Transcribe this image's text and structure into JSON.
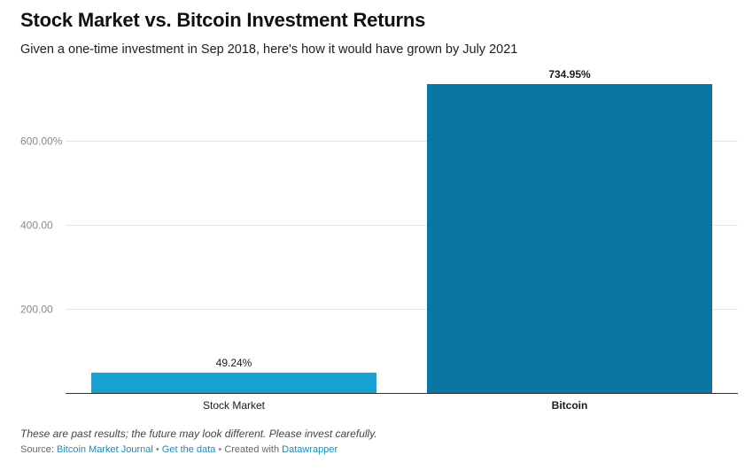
{
  "title": "Stock Market vs. Bitcoin Investment Returns",
  "subtitle": "Given a one-time investment in Sep 2018, here's how it would have grown by July 2021",
  "notes": "These are past results; the future may look different. Please invest carefully.",
  "footer": {
    "source_label": "Source:",
    "source_link": "Bitcoin Market Journal",
    "separator": "•",
    "data_link": "Get the data",
    "created_label": "Created with",
    "tool_link": "Datawrapper"
  },
  "colors": {
    "stock_market": "#17a1d0",
    "bitcoin": "#0a77a2",
    "grid": "#e4e4e4",
    "axis": "#333333",
    "tick_text": "#8a8a8a",
    "link": "#1b8bb8"
  },
  "chart_data": {
    "type": "bar",
    "categories": [
      "Stock Market",
      "Bitcoin"
    ],
    "values": [
      49.24,
      734.95
    ],
    "value_labels": [
      "49.24%",
      "734.95%"
    ],
    "bar_colors": [
      "#17a1d0",
      "#0a77a2"
    ],
    "bold_category": "Bitcoin",
    "y_ticks": [
      200,
      400,
      600
    ],
    "y_tick_labels": [
      "200.00",
      "400.00",
      "600.00%"
    ],
    "ylim": [
      0,
      750
    ],
    "grid": true,
    "xlabel": "",
    "ylabel": ""
  }
}
